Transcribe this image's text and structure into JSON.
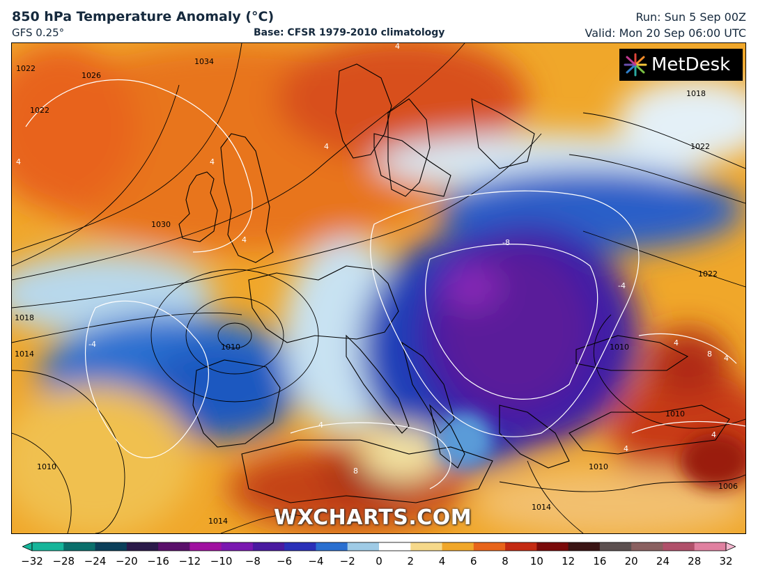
{
  "header": {
    "title": "850 hPa Temperature Anomaly (°C)",
    "model": "GFS 0.25°",
    "base": "Base: CFSR 1979-2010 climatology",
    "run": "Run: Sun 5 Sep 00Z",
    "valid": "Valid: Mon 20 Sep 06:00 UTC"
  },
  "branding": {
    "logo": "MetDesk",
    "watermark": "WXCHARTS.COM"
  },
  "map": {
    "region": "Europe / North Atlantic",
    "isobar_labels": [
      "1022",
      "1022",
      "1026",
      "1034",
      "1018",
      "1022",
      "1030",
      "1022",
      "1018",
      "1014",
      "1010",
      "1010",
      "1010",
      "1010",
      "1014",
      "1014",
      "1010",
      "1006"
    ],
    "anomaly_labels": [
      "4",
      "4",
      "4",
      "4",
      "4",
      "-8",
      "-4",
      "-4",
      "4",
      "8",
      "4",
      "4",
      "8",
      "4",
      "4"
    ]
  },
  "colorbar": {
    "ticks": [
      "−32",
      "−28",
      "−24",
      "−20",
      "−16",
      "−12",
      "−10",
      "−8",
      "−6",
      "−4",
      "−2",
      "0",
      "2",
      "4",
      "6",
      "8",
      "10",
      "12",
      "16",
      "20",
      "24",
      "28",
      "32"
    ],
    "colors": [
      "#16b59a",
      "#0a6f6b",
      "#0b3f5a",
      "#2b1a4a",
      "#5a0f6a",
      "#a010a0",
      "#7a18b0",
      "#4a1aa0",
      "#2a30b8",
      "#2a6fd0",
      "#9fcbe6",
      "#ffffff",
      "#f6d98a",
      "#f0a72a",
      "#e8641a",
      "#c42a12",
      "#7a0a0a",
      "#3a1414",
      "#5c5050",
      "#8a6060",
      "#b0506a",
      "#e080a0",
      "#f4b8d0"
    ]
  }
}
